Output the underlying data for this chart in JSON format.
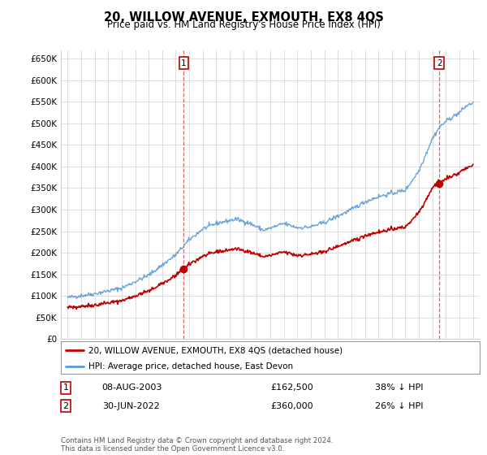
{
  "title": "20, WILLOW AVENUE, EXMOUTH, EX8 4QS",
  "subtitle": "Price paid vs. HM Land Registry's House Price Index (HPI)",
  "ylim": [
    0,
    670000
  ],
  "yticks": [
    0,
    50000,
    100000,
    150000,
    200000,
    250000,
    300000,
    350000,
    400000,
    450000,
    500000,
    550000,
    600000,
    650000
  ],
  "ytick_labels": [
    "£0",
    "£50K",
    "£100K",
    "£150K",
    "£200K",
    "£250K",
    "£300K",
    "£350K",
    "£400K",
    "£450K",
    "£500K",
    "£550K",
    "£600K",
    "£650K"
  ],
  "xlim_start": 1994.5,
  "xlim_end": 2025.5,
  "hpi_color": "#5b9bd5",
  "price_color": "#c00000",
  "marker1_date": 2003.6,
  "marker1_price": 162500,
  "marker1_label": "1",
  "marker2_date": 2022.5,
  "marker2_price": 360000,
  "marker2_label": "2",
  "vline1_x": 2003.6,
  "vline2_x": 2022.5,
  "legend_entry1": "20, WILLOW AVENUE, EXMOUTH, EX8 4QS (detached house)",
  "legend_entry2": "HPI: Average price, detached house, East Devon",
  "footnote": "Contains HM Land Registry data © Crown copyright and database right 2024.\nThis data is licensed under the Open Government Licence v3.0.",
  "table_row1": [
    "1",
    "08-AUG-2003",
    "£162,500",
    "38% ↓ HPI"
  ],
  "table_row2": [
    "2",
    "30-JUN-2022",
    "£360,000",
    "26% ↓ HPI"
  ],
  "bg_color": "#ffffff",
  "grid_color": "#d0d0d0",
  "title_fontsize": 10.5,
  "subtitle_fontsize": 8.5,
  "tick_fontsize": 7.5
}
